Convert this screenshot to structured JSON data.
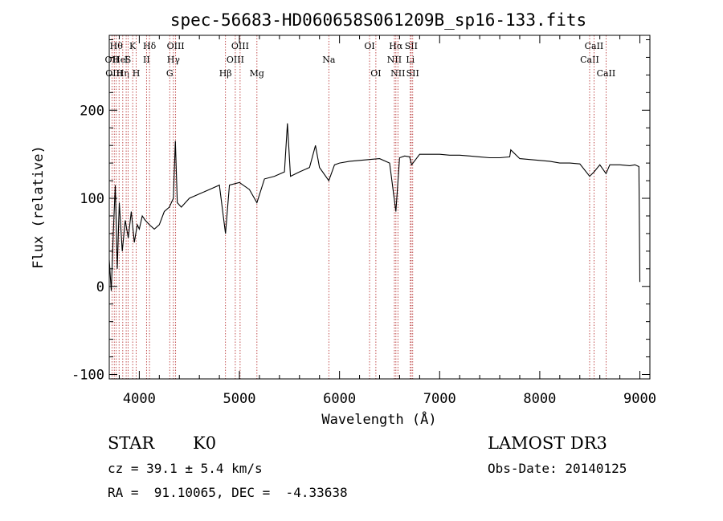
{
  "chart_data": {
    "type": "line",
    "title": "spec-56683-HD060658S061209B_sp16-133.fits",
    "xlabel": "Wavelength (Å)",
    "ylabel": "Flux (relative)",
    "xlim": [
      3700,
      9100
    ],
    "ylim": [
      -105,
      285
    ],
    "xticks": [
      4000,
      5000,
      6000,
      7000,
      8000,
      9000
    ],
    "yticks": [
      -100,
      0,
      100,
      200
    ],
    "grid": false,
    "series": [
      {
        "name": "Flux",
        "x": [
          3700,
          3720,
          3740,
          3760,
          3780,
          3800,
          3830,
          3860,
          3890,
          3920,
          3950,
          3980,
          4000,
          4030,
          4060,
          4100,
          4150,
          4200,
          4250,
          4300,
          4340,
          4360,
          4380,
          4420,
          4500,
          4600,
          4700,
          4800,
          4861,
          4900,
          5000,
          5100,
          5175,
          5250,
          5350,
          5450,
          5480,
          5510,
          5600,
          5700,
          5760,
          5800,
          5893,
          5950,
          6000,
          6100,
          6200,
          6300,
          6400,
          6500,
          6563,
          6600,
          6650,
          6700,
          6720,
          6800,
          6900,
          7000,
          7100,
          7200,
          7300,
          7400,
          7500,
          7600,
          7700,
          7710,
          7800,
          7900,
          8000,
          8100,
          8200,
          8300,
          8400,
          8498,
          8542,
          8600,
          8662,
          8700,
          8800,
          8900,
          8950,
          8990,
          9000
        ],
        "y": [
          30,
          -5,
          60,
          115,
          20,
          95,
          40,
          75,
          55,
          85,
          50,
          70,
          65,
          80,
          75,
          70,
          65,
          70,
          85,
          90,
          100,
          165,
          95,
          90,
          100,
          105,
          110,
          115,
          60,
          115,
          118,
          110,
          95,
          122,
          125,
          130,
          185,
          125,
          130,
          135,
          160,
          135,
          120,
          138,
          140,
          142,
          143,
          144,
          145,
          140,
          85,
          146,
          148,
          147,
          138,
          150,
          150,
          150,
          149,
          149,
          148,
          147,
          146,
          146,
          147,
          155,
          145,
          144,
          143,
          142,
          140,
          140,
          139,
          125,
          130,
          138,
          128,
          138,
          138,
          137,
          138,
          136,
          5
        ]
      }
    ],
    "lines": [
      {
        "wl": 3727,
        "label": "OII",
        "row": 1
      },
      {
        "wl": 3750,
        "label": "OIII",
        "row": 2
      },
      {
        "wl": 3770,
        "label": "Hθ",
        "row": 0
      },
      {
        "wl": 3798,
        "label": "He",
        "row": 1
      },
      {
        "wl": 3835,
        "label": "Hη",
        "row": 2
      },
      {
        "wl": 3869,
        "label": "I",
        "row": 1
      },
      {
        "wl": 3889,
        "label": "S",
        "row": 1
      },
      {
        "wl": 3934,
        "label": "K",
        "row": 0
      },
      {
        "wl": 3969,
        "label": "H",
        "row": 2
      },
      {
        "wl": 4072,
        "label": "II",
        "row": 1
      },
      {
        "wl": 4102,
        "label": "Hδ",
        "row": 0
      },
      {
        "wl": 4304,
        "label": "G",
        "row": 2
      },
      {
        "wl": 4341,
        "label": "Hγ",
        "row": 1
      },
      {
        "wl": 4363,
        "label": "OIII",
        "row": 0
      },
      {
        "wl": 4861,
        "label": "Hβ",
        "row": 2
      },
      {
        "wl": 4959,
        "label": "OIII",
        "row": 1
      },
      {
        "wl": 5007,
        "label": "OIII",
        "row": 0
      },
      {
        "wl": 5175,
        "label": "Mg",
        "row": 2
      },
      {
        "wl": 5893,
        "label": "Na",
        "row": 1
      },
      {
        "wl": 6300,
        "label": "OI",
        "row": 0
      },
      {
        "wl": 6363,
        "label": "OI",
        "row": 2
      },
      {
        "wl": 6548,
        "label": "NII",
        "row": 1
      },
      {
        "wl": 6563,
        "label": "Hα",
        "row": 0
      },
      {
        "wl": 6583,
        "label": "NII",
        "row": 2
      },
      {
        "wl": 6707,
        "label": "Li",
        "row": 1
      },
      {
        "wl": 6716,
        "label": "SII",
        "row": 0
      },
      {
        "wl": 6731,
        "label": "SII",
        "row": 2
      },
      {
        "wl": 8498,
        "label": "CaII",
        "row": 1
      },
      {
        "wl": 8542,
        "label": "CaII",
        "row": 0
      },
      {
        "wl": 8662,
        "label": "CaII",
        "row": 2
      }
    ]
  },
  "info": {
    "object_type": "STAR",
    "subclass": "K0",
    "redshift": "cz = 39.1 ± 5.4 km/s",
    "coords": "RA =  91.10065, DEC =  -4.33638",
    "survey": "LAMOST DR3",
    "obs_date": "Obs-Date: 20140125"
  },
  "colors": {
    "line_marker": "#b22222",
    "spectrum": "#000000",
    "axes": "#000000"
  }
}
